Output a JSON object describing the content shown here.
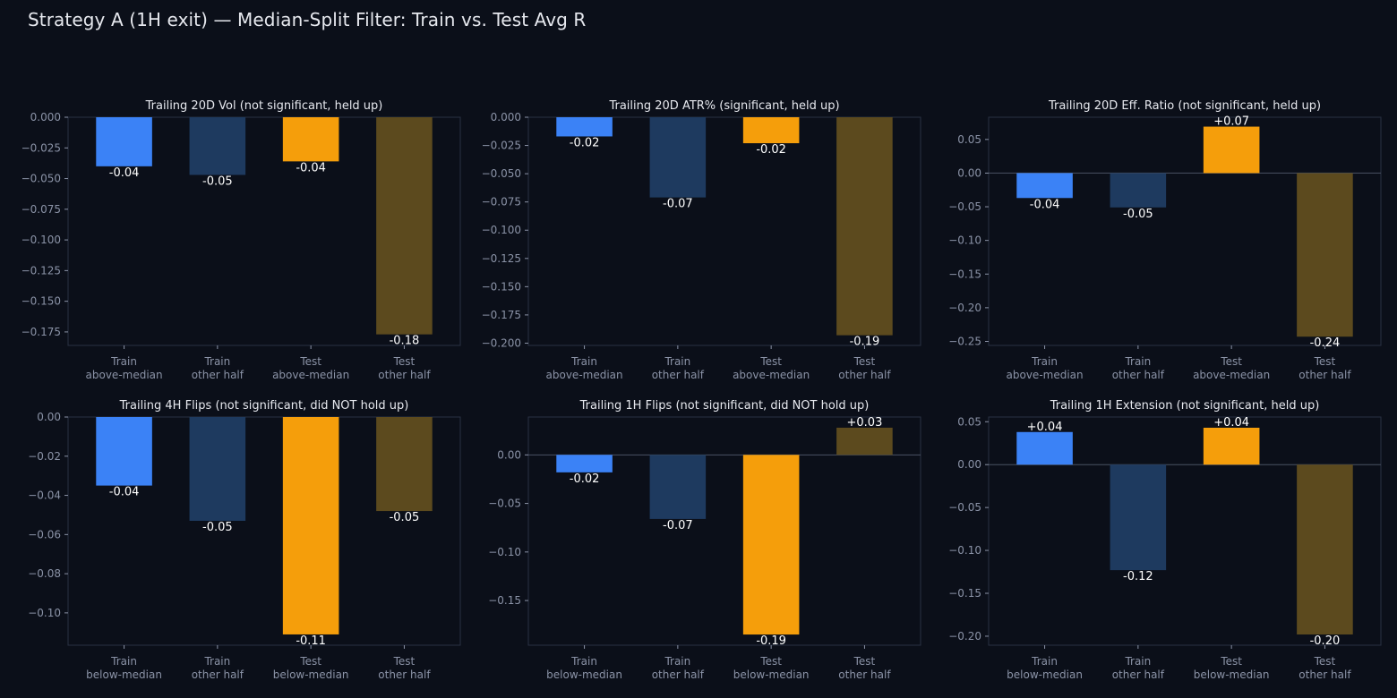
{
  "figure": {
    "title": "Strategy A (1H exit) — Median-Split Filter: Train vs. Test Avg R"
  },
  "colors": {
    "background": "#0b0f19",
    "train_filter": "#3b82f6",
    "train_other": "#1e3a5f",
    "test_filter": "#f59e0b",
    "test_other": "#5c4a1e",
    "tick_text": "#8b93a7",
    "title_text": "#e6e8ee",
    "value_label": "#ffffff",
    "axes_edge": "#2a3142",
    "zero_line": "#4a5263"
  },
  "chart_data": [
    {
      "type": "bar",
      "title": "Trailing 20D Vol (not significant, held up)",
      "categories": [
        "Train\nabove-median",
        "Train\nother half",
        "Test\nabove-median",
        "Test\nother half"
      ],
      "values": [
        -0.04,
        -0.047,
        -0.036,
        -0.177
      ],
      "value_labels": [
        "-0.04",
        "-0.05",
        "-0.04",
        "-0.18"
      ],
      "ylim": [
        -0.186,
        0.0
      ],
      "yticks": [
        0.0,
        -0.025,
        -0.05,
        -0.075,
        -0.1,
        -0.125,
        -0.15,
        -0.175
      ],
      "ytick_labels": [
        "0.000",
        "−0.025",
        "−0.050",
        "−0.075",
        "−0.100",
        "−0.125",
        "−0.150",
        "−0.175"
      ],
      "grid": false
    },
    {
      "type": "bar",
      "title": "Trailing 20D ATR% (significant, held up)",
      "categories": [
        "Train\nabove-median",
        "Train\nother half",
        "Test\nabove-median",
        "Test\nother half"
      ],
      "values": [
        -0.017,
        -0.071,
        -0.023,
        -0.193
      ],
      "value_labels": [
        "-0.02",
        "-0.07",
        "-0.02",
        "-0.19"
      ],
      "ylim": [
        -0.202,
        0.0
      ],
      "yticks": [
        0.0,
        -0.025,
        -0.05,
        -0.075,
        -0.1,
        -0.125,
        -0.15,
        -0.175,
        -0.2
      ],
      "ytick_labels": [
        "0.000",
        "−0.025",
        "−0.050",
        "−0.075",
        "−0.100",
        "−0.125",
        "−0.150",
        "−0.175",
        "−0.200"
      ],
      "grid": false
    },
    {
      "type": "bar",
      "title": "Trailing 20D Eff. Ratio (not significant, held up)",
      "categories": [
        "Train\nabove-median",
        "Train\nother half",
        "Test\nabove-median",
        "Test\nother half"
      ],
      "values": [
        -0.037,
        -0.051,
        0.069,
        -0.243
      ],
      "value_labels": [
        "-0.04",
        "-0.05",
        "+0.07",
        "-0.24"
      ],
      "ylim": [
        -0.256,
        0.083
      ],
      "yticks": [
        0.05,
        0.0,
        -0.05,
        -0.1,
        -0.15,
        -0.2,
        -0.25
      ],
      "ytick_labels": [
        "0.05",
        "0.00",
        "−0.05",
        "−0.10",
        "−0.15",
        "−0.20",
        "−0.25"
      ],
      "grid": false
    },
    {
      "type": "bar",
      "title": "Trailing 4H Flips (not significant, did NOT hold up)",
      "categories": [
        "Train\nbelow-median",
        "Train\nother half",
        "Test\nbelow-median",
        "Test\nother half"
      ],
      "values": [
        -0.035,
        -0.053,
        -0.111,
        -0.048
      ],
      "value_labels": [
        "-0.04",
        "-0.05",
        "-0.11",
        "-0.05"
      ],
      "ylim": [
        -0.1165,
        0.0
      ],
      "yticks": [
        0.0,
        -0.02,
        -0.04,
        -0.06,
        -0.08,
        -0.1
      ],
      "ytick_labels": [
        "0.00",
        "−0.02",
        "−0.04",
        "−0.06",
        "−0.08",
        "−0.10"
      ],
      "grid": false
    },
    {
      "type": "bar",
      "title": "Trailing 1H Flips (not significant, did NOT hold up)",
      "categories": [
        "Train\nbelow-median",
        "Train\nother half",
        "Test\nbelow-median",
        "Test\nother half"
      ],
      "values": [
        -0.018,
        -0.066,
        -0.185,
        0.028
      ],
      "value_labels": [
        "-0.02",
        "-0.07",
        "-0.19",
        "+0.03"
      ],
      "ylim": [
        -0.196,
        0.039
      ],
      "yticks": [
        0.0,
        -0.05,
        -0.1,
        -0.15
      ],
      "ytick_labels": [
        "0.00",
        "−0.05",
        "−0.10",
        "−0.15"
      ],
      "grid": false
    },
    {
      "type": "bar",
      "title": "Trailing 1H Extension (not significant, held up)",
      "categories": [
        "Train\nbelow-median",
        "Train\nother half",
        "Test\nbelow-median",
        "Test\nother half"
      ],
      "values": [
        0.038,
        -0.123,
        0.043,
        -0.198
      ],
      "value_labels": [
        "+0.04",
        "-0.12",
        "+0.04",
        "-0.20"
      ],
      "ylim": [
        -0.2105,
        0.0555
      ],
      "yticks": [
        0.05,
        0.0,
        -0.05,
        -0.1,
        -0.15,
        -0.2
      ],
      "ytick_labels": [
        "0.05",
        "0.00",
        "−0.05",
        "−0.10",
        "−0.15",
        "−0.20"
      ],
      "grid": false
    }
  ]
}
